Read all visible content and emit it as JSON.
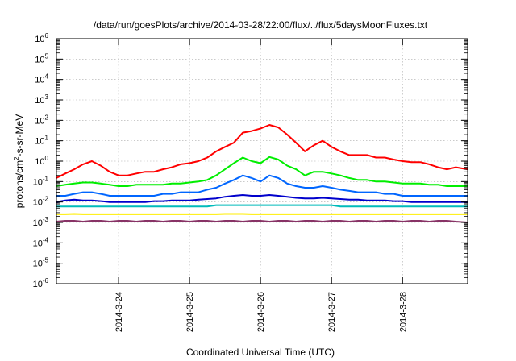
{
  "chart_data": {
    "type": "line",
    "title": "/data/run/goesPlots/archive/2014-03-28/22:00/flux/../flux/5daysMoonFluxes.txt",
    "xlabel": "Coordinated Universal Time (UTC)",
    "ylabel_parts": {
      "before": "protons/cm",
      "sup": "2",
      "after": "-s-sr-MeV"
    },
    "y_scale": "log",
    "ylim": [
      1e-06,
      1000000.0
    ],
    "y_ticks": [
      {
        "value": 1e-06,
        "base": "10",
        "exp": "-6"
      },
      {
        "value": 1e-05,
        "base": "10",
        "exp": "-5"
      },
      {
        "value": 0.0001,
        "base": "10",
        "exp": "-4"
      },
      {
        "value": 0.001,
        "base": "10",
        "exp": "-3"
      },
      {
        "value": 0.01,
        "base": "10",
        "exp": "-2"
      },
      {
        "value": 0.1,
        "base": "10",
        "exp": "-1"
      },
      {
        "value": 1.0,
        "base": "10",
        "exp": "0"
      },
      {
        "value": 10.0,
        "base": "10",
        "exp": "1"
      },
      {
        "value": 100.0,
        "base": "10",
        "exp": "2"
      },
      {
        "value": 1000.0,
        "base": "10",
        "exp": "3"
      },
      {
        "value": 10000.0,
        "base": "10",
        "exp": "4"
      },
      {
        "value": 100000.0,
        "base": "10",
        "exp": "5"
      },
      {
        "value": 1000000.0,
        "base": "10",
        "exp": "6"
      }
    ],
    "xlim": [
      "2014-03-23 03:00",
      "2014-03-28 22:00"
    ],
    "x_ticks": [
      {
        "value": "2014-03-24 00:00",
        "label": "2014-3-24"
      },
      {
        "value": "2014-03-25 00:00",
        "label": "2014-3-25"
      },
      {
        "value": "2014-03-26 00:00",
        "label": "2014-3-26"
      },
      {
        "value": "2014-03-27 00:00",
        "label": "2014-3-27"
      },
      {
        "value": "2014-03-28 00:00",
        "label": "2014-3-28"
      }
    ],
    "grid": true,
    "x": [
      "2014-03-23 03:00",
      "2014-03-23 06:00",
      "2014-03-23 09:00",
      "2014-03-23 12:00",
      "2014-03-23 15:00",
      "2014-03-23 18:00",
      "2014-03-23 21:00",
      "2014-03-24 00:00",
      "2014-03-24 03:00",
      "2014-03-24 06:00",
      "2014-03-24 09:00",
      "2014-03-24 12:00",
      "2014-03-24 15:00",
      "2014-03-24 18:00",
      "2014-03-24 21:00",
      "2014-03-25 00:00",
      "2014-03-25 03:00",
      "2014-03-25 06:00",
      "2014-03-25 09:00",
      "2014-03-25 12:00",
      "2014-03-25 15:00",
      "2014-03-25 18:00",
      "2014-03-25 21:00",
      "2014-03-26 00:00",
      "2014-03-26 03:00",
      "2014-03-26 06:00",
      "2014-03-26 09:00",
      "2014-03-26 12:00",
      "2014-03-26 15:00",
      "2014-03-26 18:00",
      "2014-03-26 21:00",
      "2014-03-27 00:00",
      "2014-03-27 03:00",
      "2014-03-27 06:00",
      "2014-03-27 09:00",
      "2014-03-27 12:00",
      "2014-03-27 15:00",
      "2014-03-27 18:00",
      "2014-03-27 21:00",
      "2014-03-28 00:00",
      "2014-03-28 03:00",
      "2014-03-28 06:00",
      "2014-03-28 09:00",
      "2014-03-28 12:00",
      "2014-03-28 15:00",
      "2014-03-28 18:00",
      "2014-03-28 22:00"
    ],
    "series": [
      {
        "color": "#ff0000",
        "values": [
          0.15,
          0.25,
          0.4,
          0.7,
          1.0,
          0.6,
          0.3,
          0.2,
          0.2,
          0.25,
          0.3,
          0.3,
          0.4,
          0.5,
          0.7,
          0.8,
          1.0,
          1.5,
          3,
          5,
          8,
          25,
          30,
          40,
          60,
          45,
          20,
          8,
          3,
          6,
          10,
          5,
          3,
          2,
          2,
          2,
          1.5,
          1.5,
          1.2,
          1.0,
          0.9,
          0.9,
          0.7,
          0.5,
          0.4,
          0.5,
          0.4
        ]
      },
      {
        "color": "#00ee00",
        "values": [
          0.06,
          0.07,
          0.08,
          0.09,
          0.09,
          0.08,
          0.07,
          0.06,
          0.06,
          0.07,
          0.07,
          0.07,
          0.07,
          0.08,
          0.08,
          0.09,
          0.1,
          0.12,
          0.2,
          0.4,
          0.8,
          1.5,
          1.0,
          0.8,
          1.6,
          1.2,
          0.6,
          0.4,
          0.2,
          0.3,
          0.3,
          0.25,
          0.2,
          0.15,
          0.12,
          0.12,
          0.1,
          0.1,
          0.09,
          0.08,
          0.08,
          0.08,
          0.07,
          0.07,
          0.06,
          0.06,
          0.06
        ]
      },
      {
        "color": "#0066ff",
        "values": [
          0.02,
          0.02,
          0.025,
          0.03,
          0.03,
          0.025,
          0.02,
          0.02,
          0.02,
          0.02,
          0.02,
          0.02,
          0.025,
          0.025,
          0.03,
          0.03,
          0.03,
          0.04,
          0.05,
          0.08,
          0.12,
          0.2,
          0.15,
          0.1,
          0.2,
          0.15,
          0.08,
          0.06,
          0.05,
          0.05,
          0.06,
          0.05,
          0.04,
          0.035,
          0.03,
          0.03,
          0.03,
          0.025,
          0.025,
          0.02,
          0.02,
          0.02,
          0.02,
          0.02,
          0.02,
          0.02,
          0.02
        ]
      },
      {
        "color": "#0000cc",
        "values": [
          0.01,
          0.012,
          0.013,
          0.012,
          0.012,
          0.011,
          0.01,
          0.01,
          0.01,
          0.01,
          0.01,
          0.011,
          0.011,
          0.012,
          0.012,
          0.012,
          0.013,
          0.014,
          0.015,
          0.018,
          0.02,
          0.022,
          0.02,
          0.02,
          0.022,
          0.02,
          0.018,
          0.016,
          0.015,
          0.015,
          0.016,
          0.015,
          0.014,
          0.013,
          0.013,
          0.012,
          0.012,
          0.012,
          0.011,
          0.011,
          0.01,
          0.01,
          0.01,
          0.01,
          0.01,
          0.01,
          0.01
        ]
      },
      {
        "color": "#00bbbb",
        "values": [
          0.006,
          0.006,
          0.006,
          0.006,
          0.006,
          0.006,
          0.006,
          0.006,
          0.006,
          0.006,
          0.006,
          0.006,
          0.006,
          0.006,
          0.006,
          0.006,
          0.006,
          0.006,
          0.007,
          0.007,
          0.007,
          0.007,
          0.007,
          0.007,
          0.007,
          0.007,
          0.007,
          0.007,
          0.007,
          0.007,
          0.007,
          0.007,
          0.006,
          0.006,
          0.006,
          0.006,
          0.006,
          0.006,
          0.006,
          0.006,
          0.006,
          0.006,
          0.006,
          0.006,
          0.006,
          0.006,
          0.006
        ]
      },
      {
        "color": "#ffee00",
        "values": [
          0.0025,
          0.0025,
          0.0026,
          0.0025,
          0.0025,
          0.0025,
          0.0025,
          0.0025,
          0.0025,
          0.0025,
          0.0025,
          0.0025,
          0.0025,
          0.0025,
          0.0025,
          0.0025,
          0.0025,
          0.0025,
          0.0025,
          0.0026,
          0.0026,
          0.0026,
          0.0025,
          0.0025,
          0.0025,
          0.0025,
          0.0025,
          0.0025,
          0.0025,
          0.0025,
          0.0025,
          0.0025,
          0.0025,
          0.0025,
          0.0025,
          0.0025,
          0.0025,
          0.0025,
          0.0025,
          0.0025,
          0.0025,
          0.0025,
          0.0025,
          0.0025,
          0.0025,
          0.0025,
          0.0025
        ]
      },
      {
        "color": "#883366",
        "values": [
          0.0011,
          0.0012,
          0.0012,
          0.0011,
          0.0012,
          0.0012,
          0.0011,
          0.0012,
          0.0012,
          0.0011,
          0.0012,
          0.0012,
          0.0011,
          0.0012,
          0.0012,
          0.0011,
          0.0012,
          0.0012,
          0.0011,
          0.0012,
          0.0012,
          0.0011,
          0.0012,
          0.0012,
          0.0011,
          0.0012,
          0.0012,
          0.0011,
          0.0012,
          0.0012,
          0.0011,
          0.0012,
          0.0012,
          0.0011,
          0.0012,
          0.0012,
          0.0011,
          0.0012,
          0.0012,
          0.0011,
          0.0012,
          0.0012,
          0.0011,
          0.0012,
          0.0012,
          0.0011,
          0.001
        ]
      }
    ]
  }
}
